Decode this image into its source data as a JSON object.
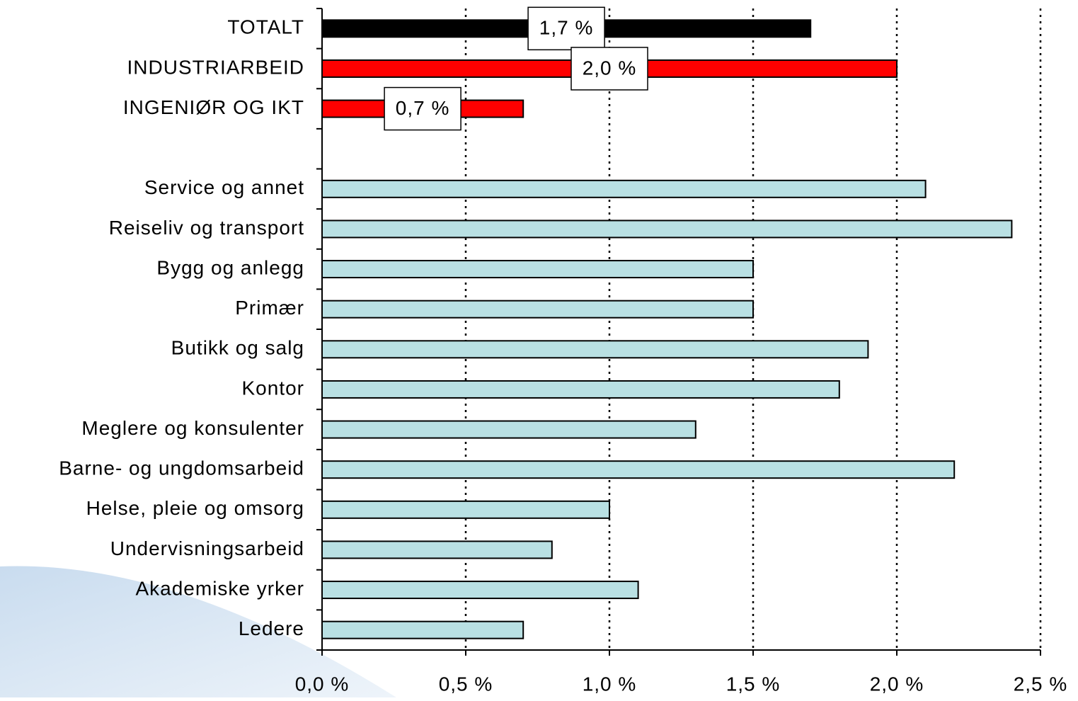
{
  "chart_data": {
    "type": "barh",
    "categories": [
      "TOTALT",
      "INDUSTRIARBEID",
      "INGENIØR OG IKT",
      null,
      "Service og annet",
      "Reiseliv og transport",
      "Bygg og anlegg",
      "Primær",
      "Butikk og salg",
      "Kontor",
      "Meglere og konsulenter",
      "Barne- og ungdomsarbeid",
      "Helse, pleie og omsorg",
      "Undervisningsarbeid",
      "Akademiske yrker",
      "Ledere"
    ],
    "values": [
      1.7,
      2.0,
      0.7,
      null,
      2.1,
      2.4,
      1.5,
      1.5,
      1.9,
      1.8,
      1.3,
      2.2,
      1.0,
      0.8,
      1.1,
      0.7
    ],
    "value_labels": [
      "1,7 %",
      "2,0 %",
      "0,7 %",
      null,
      null,
      null,
      null,
      null,
      null,
      null,
      null,
      null,
      null,
      null,
      null,
      null
    ],
    "colors": [
      "#000000",
      "#ff0000",
      "#ff0000",
      null,
      "#b9e0e3",
      "#b9e0e3",
      "#b9e0e3",
      "#b9e0e3",
      "#b9e0e3",
      "#b9e0e3",
      "#b9e0e3",
      "#b9e0e3",
      "#b9e0e3",
      "#b9e0e3",
      "#b9e0e3",
      "#b9e0e3"
    ],
    "xlim": [
      0,
      2.5
    ],
    "xticks": [
      {
        "value": 0,
        "label": "0,0 %"
      },
      {
        "value": 0.5,
        "label": "0,5 %"
      },
      {
        "value": 1.0,
        "label": "1,0 %"
      },
      {
        "value": 1.5,
        "label": "1,5 %"
      },
      {
        "value": 2.0,
        "label": "2,0 %"
      },
      {
        "value": 2.5,
        "label": "2,5 %"
      }
    ],
    "grid": true
  }
}
